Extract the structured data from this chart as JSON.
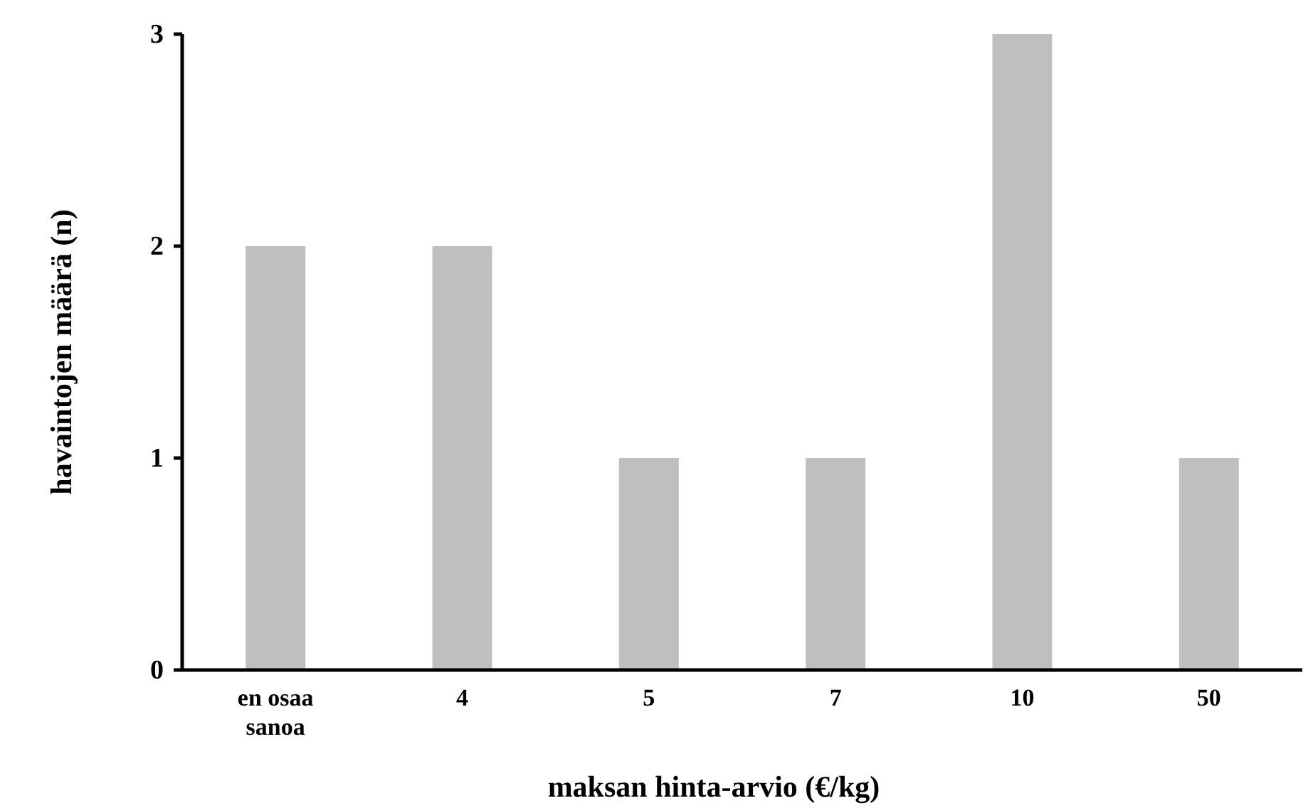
{
  "chart_data": {
    "type": "bar",
    "xlabel": "maksan hinta-arvio (€/kg)",
    "ylabel": "havaintojen määrä (n)",
    "categories": [
      "en osaa sanoa",
      "4",
      "5",
      "7",
      "10",
      "50"
    ],
    "values": [
      2,
      2,
      1,
      1,
      3,
      1
    ],
    "color": "#bfbfbf",
    "ylim": [
      0,
      3
    ],
    "yticks": [
      0,
      1,
      2,
      3
    ],
    "grid": false
  }
}
